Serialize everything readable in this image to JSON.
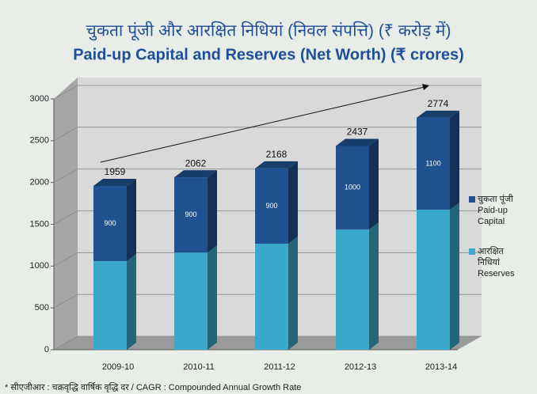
{
  "chart_data": {
    "type": "bar",
    "stacked": true,
    "title": "चुकता पूंजी और आरक्षित निधियां (निवल संपत्ति) (₹ करोड़ में)",
    "subtitle": "Paid-up Capital and Reserves (Net Worth) (₹ crores)",
    "categories": [
      "2009-10",
      "2010-11",
      "2011-12",
      "2012-13",
      "2013-14"
    ],
    "series": [
      {
        "name": "आरक्षित\nनिधियां\nReserves",
        "color": "#3aa9c9",
        "values": [
          1059,
          1162,
          1268,
          1437,
          1674
        ]
      },
      {
        "name": "चुकता पूंजी\nPaid-up\nCapital",
        "color": "#1f528f",
        "values": [
          900,
          900,
          900,
          1000,
          1100
        ],
        "show_labels": true
      }
    ],
    "totals": [
      1959,
      2062,
      2168,
      2437,
      2774
    ],
    "ylim": [
      0,
      3000
    ],
    "yticks": [
      0,
      500,
      1000,
      1500,
      2000,
      2500,
      3000
    ],
    "grid": true,
    "legend": "right",
    "footnote": "* सीएजीआर : चक्रवृद्धि वार्षिक वृद्धि दर / CAGR : Compounded Annual Growth Rate"
  }
}
